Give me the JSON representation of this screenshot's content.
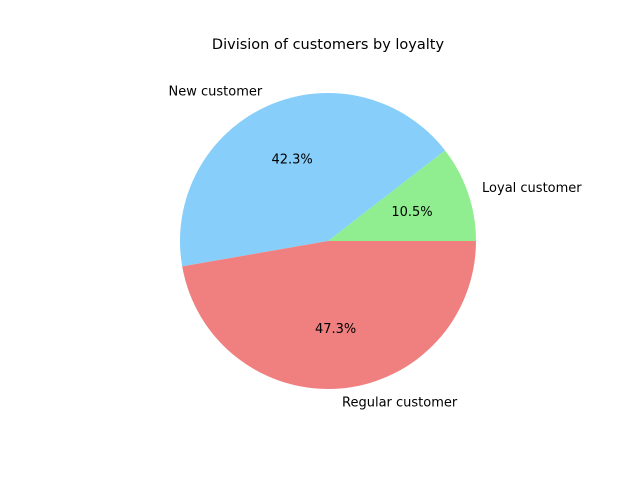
{
  "chart_data": {
    "type": "pie",
    "title": "Division of customers by loyalty",
    "start_angle_deg": 0,
    "direction": "counterclockwise",
    "slices": [
      {
        "label": "Loyal customer",
        "value": 10.5,
        "pct_label": "10.5%",
        "color": "#90ee90"
      },
      {
        "label": "New customer",
        "value": 42.3,
        "pct_label": "42.3%",
        "color": "#87cefa"
      },
      {
        "label": "Regular customer",
        "value": 47.3,
        "pct_label": "47.3%",
        "color": "#f08080"
      }
    ]
  }
}
